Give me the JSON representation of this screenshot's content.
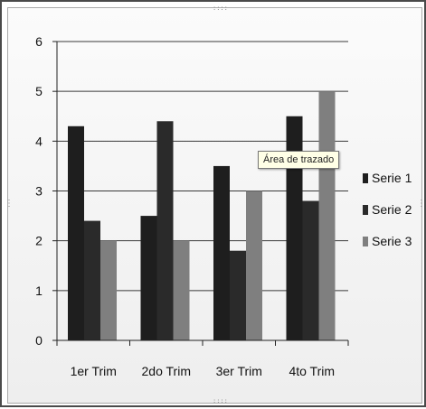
{
  "tooltip": {
    "text": "Área de trazado"
  },
  "handles": {
    "top": "::::",
    "bottom": "::::",
    "left": "⋮",
    "right": "⋮"
  },
  "colors": {
    "serie1": "#1e1e1e",
    "serie2": "#2a2a2a",
    "serie3": "#7f7f7f",
    "gridline": "#3a3a3a",
    "axis": "#222222"
  },
  "chart_data": {
    "type": "bar",
    "categories": [
      "1er Trim",
      "2do Trim",
      "3er Trim",
      "4to Trim"
    ],
    "series": [
      {
        "name": "Serie 1",
        "values": [
          4.3,
          2.5,
          3.5,
          4.5
        ]
      },
      {
        "name": "Serie 2",
        "values": [
          2.4,
          4.4,
          1.8,
          2.8
        ]
      },
      {
        "name": "Serie 3",
        "values": [
          2.0,
          2.0,
          3.0,
          5.0
        ]
      }
    ],
    "yticks": [
      "0",
      "1",
      "2",
      "3",
      "4",
      "5",
      "6"
    ],
    "ylim": [
      0,
      6
    ],
    "grid": true,
    "legend": "right"
  }
}
